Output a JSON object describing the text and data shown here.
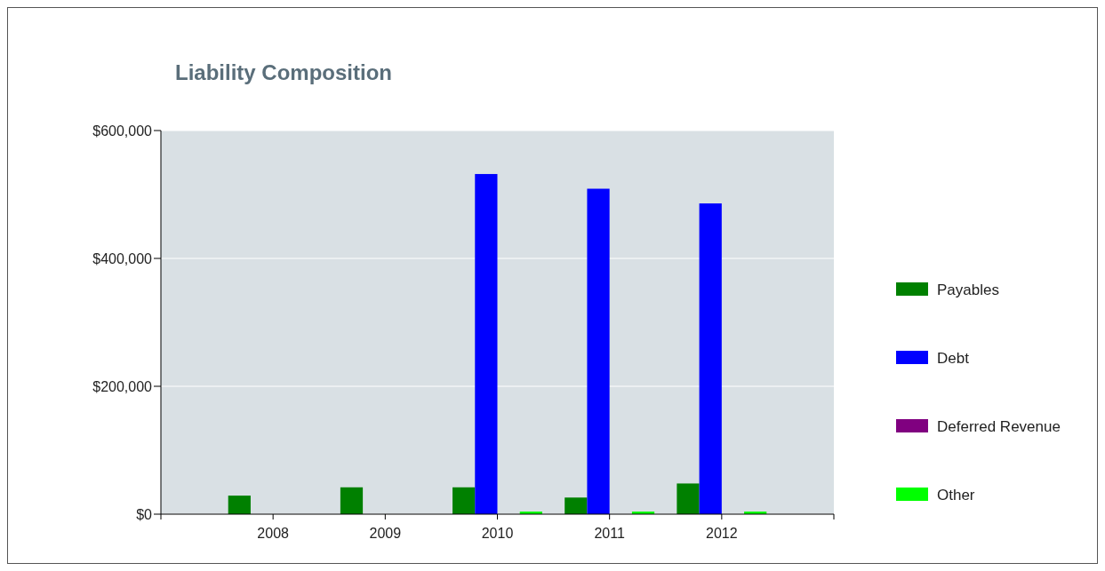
{
  "chart_data": {
    "type": "bar",
    "title": "Liability Composition",
    "categories": [
      "2008",
      "2009",
      "2010",
      "2011",
      "2012"
    ],
    "series": [
      {
        "name": "Payables",
        "color": "#008000",
        "values": [
          29000,
          42000,
          42000,
          26000,
          48000
        ]
      },
      {
        "name": "Debt",
        "color": "#0000ff",
        "values": [
          0,
          0,
          532000,
          509000,
          486000
        ]
      },
      {
        "name": "Deferred Revenue",
        "color": "#800080",
        "values": [
          0,
          0,
          0,
          0,
          0
        ]
      },
      {
        "name": "Other",
        "color": "#00ff00",
        "values": [
          0,
          0,
          4000,
          4000,
          4000
        ]
      }
    ],
    "ylim": [
      0,
      600000
    ],
    "yticks": [
      {
        "value": 0,
        "label": "$0"
      },
      {
        "value": 200000,
        "label": "$200,000"
      },
      {
        "value": 400000,
        "label": "$400,000"
      },
      {
        "value": 600000,
        "label": "$600,000"
      }
    ],
    "grid": "y",
    "legend": "right"
  }
}
